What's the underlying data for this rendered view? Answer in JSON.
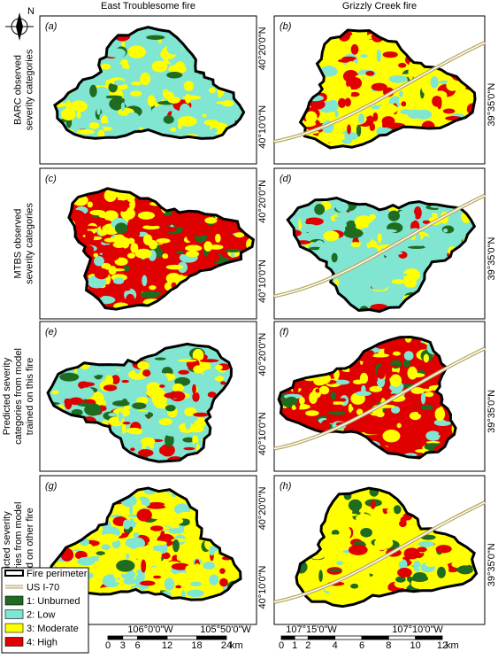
{
  "north": "N",
  "columns": [
    "East Troublesome fire",
    "Grizzly Creek fire"
  ],
  "rows": [
    [
      "BARC observed",
      "severity categories"
    ],
    [
      "MTBS observed",
      "severity categories"
    ],
    [
      "Predicted severity",
      "categories from model",
      "trained on this fire"
    ],
    [
      "Predicted severity",
      "categories from model",
      "trained on other fire"
    ]
  ],
  "panel_labels": [
    "(a)",
    "(b)",
    "(c)",
    "(d)",
    "(e)",
    "(f)",
    "(g)",
    "(h)"
  ],
  "lat_labels_left": [
    "40°20'0\"N",
    "40°10'0\"N"
  ],
  "lat_labels_right": [
    "39°35'0\"N"
  ],
  "lon_labels_left": [
    "0\"W",
    "106°0'0\"W",
    "105°50'0\"W"
  ],
  "lon_labels_right": [
    "107°15'0\"W",
    "107°10'0\"W"
  ],
  "scale_left": {
    "ticks": [
      "0",
      "3",
      "6",
      "12",
      "18",
      "24"
    ],
    "unit": "km"
  },
  "scale_right": {
    "ticks": [
      "0",
      "1",
      "2",
      "4",
      "6",
      "8",
      "10",
      "12"
    ],
    "unit": "km"
  },
  "legend": [
    {
      "label": "Fire perimeter"
    },
    {
      "label": "US I-70"
    },
    {
      "label": "1: Unburned",
      "color": "#1f6b1f"
    },
    {
      "label": "2: Low",
      "color": "#80e6d2"
    },
    {
      "label": "3: Moderate",
      "color": "#ffff00"
    },
    {
      "label": "4: High",
      "color": "#e00000"
    }
  ]
}
